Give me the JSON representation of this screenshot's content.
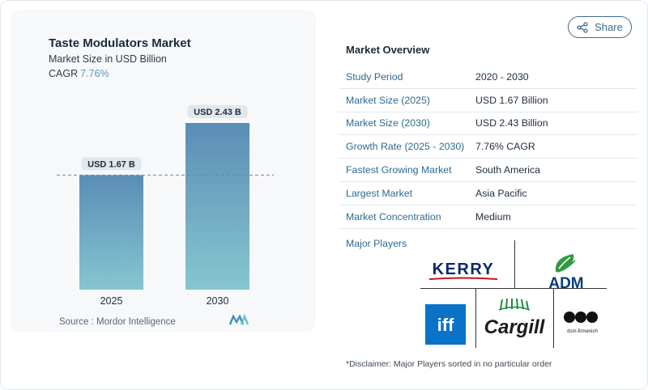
{
  "chart": {
    "title": "Taste Modulators Market",
    "subtitle": "Market Size in USD Billion",
    "cagr_label": "CAGR",
    "cagr_value": "7.76%",
    "source": "Source :  Mordor Intelligence"
  },
  "chart_data": {
    "type": "bar",
    "categories": [
      "2025",
      "2030"
    ],
    "values": [
      1.67,
      2.43
    ],
    "data_labels": [
      "USD 1.67 B",
      "USD 2.43 B"
    ],
    "title": "Taste Modulators Market",
    "ylabel": "Market Size in USD Billion",
    "ylim": [
      0,
      2.43
    ],
    "grid": false,
    "reference_line": "dashed at 2025 value",
    "colors": {
      "bar_top": "#5b8db5",
      "bar_bottom": "#86c6cf",
      "label_bg": "#e2e7ec"
    }
  },
  "share": {
    "label": "Share",
    "icon": "share-icon"
  },
  "overview": {
    "title": "Market Overview",
    "rows": [
      {
        "key": "Study Period",
        "value": "2020 - 2030"
      },
      {
        "key": "Market Size (2025)",
        "value": "USD 1.67 Billion"
      },
      {
        "key": "Market Size (2030)",
        "value": "USD 2.43 Billion"
      },
      {
        "key": "Growth Rate (2025 - 2030)",
        "value": "7.76% CAGR"
      },
      {
        "key": "Fastest Growing Market",
        "value": "South America"
      },
      {
        "key": "Largest Market",
        "value": "Asia Pacific"
      },
      {
        "key": "Market Concentration",
        "value": "Medium"
      }
    ],
    "players_label": "Major Players",
    "players": [
      "KERRY",
      "ADM",
      "iff",
      "Cargill",
      "dsm-firmenich"
    ],
    "disclaimer": "*Disclaimer: Major Players sorted in no particular order"
  },
  "colors": {
    "accent": "#2e6a90",
    "cagr": "#5a9bbd",
    "share_border": "#3d6c8c"
  }
}
